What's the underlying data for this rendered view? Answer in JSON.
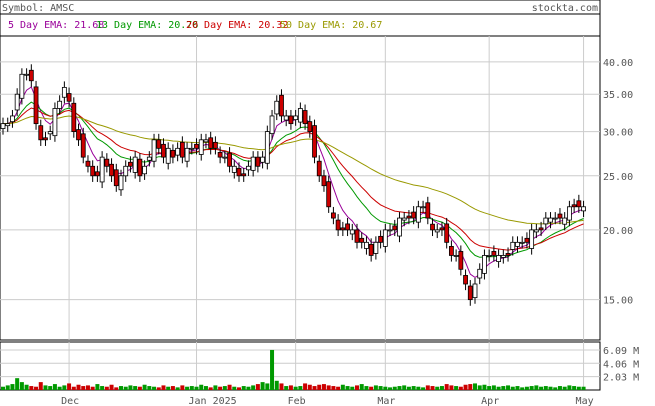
{
  "header": {
    "symbol_text": "Symbol: AMSC",
    "brand_text": "stockta.com"
  },
  "legend": [
    {
      "label": "5 Day EMA: 21.68",
      "color": "#990099"
    },
    {
      "label": "13 Day EMA: 20.76",
      "color": "#009900"
    },
    {
      "label": "20 Day EMA: 20.32",
      "color": "#cc0000"
    },
    {
      "label": "50 Day EMA: 20.67",
      "color": "#999900"
    }
  ],
  "colors": {
    "up": "#009900",
    "down": "#cc0000",
    "grid": "#cccccc",
    "wick": "#000000",
    "body_up": "#ffffff",
    "body_down": "#cc0000"
  },
  "chart_data": [
    {
      "type": "candlestick",
      "title": "Symbol: AMSC",
      "y_scale": "log",
      "ylim": [
        12.7,
        44.5
      ],
      "ytick_labels": [
        "40.00",
        "35.00",
        "30.00",
        "25.00",
        "20.00",
        "15.00"
      ],
      "yticks": [
        40,
        35,
        30,
        25,
        20,
        15
      ],
      "xtick_labels": [
        "Dec",
        "Jan 2025",
        "Feb",
        "Mar",
        "Apr",
        "May"
      ],
      "xtick_index": [
        14,
        41,
        62,
        81,
        103,
        123
      ],
      "grid": true,
      "legend_position": "top-left",
      "close": [
        31,
        31,
        32,
        35,
        38,
        38,
        37,
        31,
        29,
        29,
        30,
        33,
        34,
        36,
        34,
        30,
        29,
        27,
        26,
        25,
        25,
        27,
        26,
        25,
        24,
        25,
        26,
        26,
        27,
        25,
        26,
        27,
        29,
        28,
        27,
        28,
        27,
        28,
        27,
        28,
        28,
        28,
        29,
        29,
        28,
        28,
        27,
        27,
        26,
        26,
        25,
        25,
        26,
        27,
        26,
        27,
        30,
        32,
        34,
        32,
        32,
        31,
        32,
        33,
        31,
        30,
        27,
        25,
        24,
        22,
        21,
        20,
        20,
        20,
        20,
        19,
        19,
        19,
        18,
        19,
        19,
        20,
        20,
        20,
        21,
        21,
        21,
        21,
        22,
        22,
        21,
        20,
        20,
        20,
        19,
        18,
        18,
        17,
        16,
        15,
        16,
        17,
        18,
        18,
        18,
        18,
        18,
        18,
        19,
        19,
        19,
        19,
        20,
        20,
        20,
        21,
        21,
        21,
        21,
        21,
        22,
        22,
        22,
        22
      ],
      "series": [
        {
          "name": "5 Day EMA",
          "value": 21.68
        },
        {
          "name": "13 Day EMA",
          "value": 20.76
        },
        {
          "name": "20 Day EMA",
          "value": 20.32
        },
        {
          "name": "50 Day EMA",
          "value": 20.67
        }
      ]
    },
    {
      "type": "bar",
      "title": "",
      "ytick_labels": [
        "6.09 M",
        "4.06 M",
        "2.03 M"
      ],
      "yticks": [
        6.09,
        4.06,
        2.03
      ],
      "ylim": [
        0,
        7.3
      ],
      "values": [
        0.5,
        0.7,
        0.9,
        1.8,
        1.2,
        0.8,
        0.6,
        0.5,
        1.2,
        0.7,
        0.6,
        0.9,
        0.5,
        0.7,
        1.0,
        0.5,
        0.8,
        0.6,
        0.7,
        0.5,
        0.9,
        0.6,
        0.5,
        0.8,
        0.4,
        0.6,
        0.5,
        0.7,
        0.6,
        0.5,
        0.8,
        0.6,
        0.5,
        0.4,
        0.7,
        0.5,
        0.6,
        0.4,
        0.7,
        0.5,
        0.6,
        0.5,
        0.8,
        0.6,
        0.4,
        0.7,
        0.5,
        0.6,
        0.8,
        0.5,
        0.4,
        0.6,
        0.5,
        0.7,
        0.9,
        1.2,
        1.0,
        6.09,
        1.4,
        1.0,
        0.6,
        0.7,
        0.5,
        0.6,
        1.0,
        0.8,
        0.6,
        0.8,
        0.9,
        0.7,
        0.6,
        0.5,
        0.8,
        0.6,
        0.5,
        0.7,
        0.9,
        0.6,
        0.5,
        0.7,
        0.6,
        0.5,
        0.4,
        0.5,
        0.6,
        0.7,
        0.5,
        0.6,
        0.5,
        0.4,
        0.7,
        0.6,
        0.5,
        0.6,
        0.9,
        0.7,
        0.6,
        0.5,
        0.8,
        0.9,
        1.0,
        0.7,
        0.8,
        0.6,
        0.7,
        0.5,
        0.6,
        0.7,
        0.5,
        0.6,
        0.4,
        0.5,
        0.6,
        0.7,
        0.5,
        0.6,
        0.5,
        0.4,
        0.6,
        0.5,
        0.7,
        0.6,
        0.5,
        0.5
      ]
    }
  ]
}
